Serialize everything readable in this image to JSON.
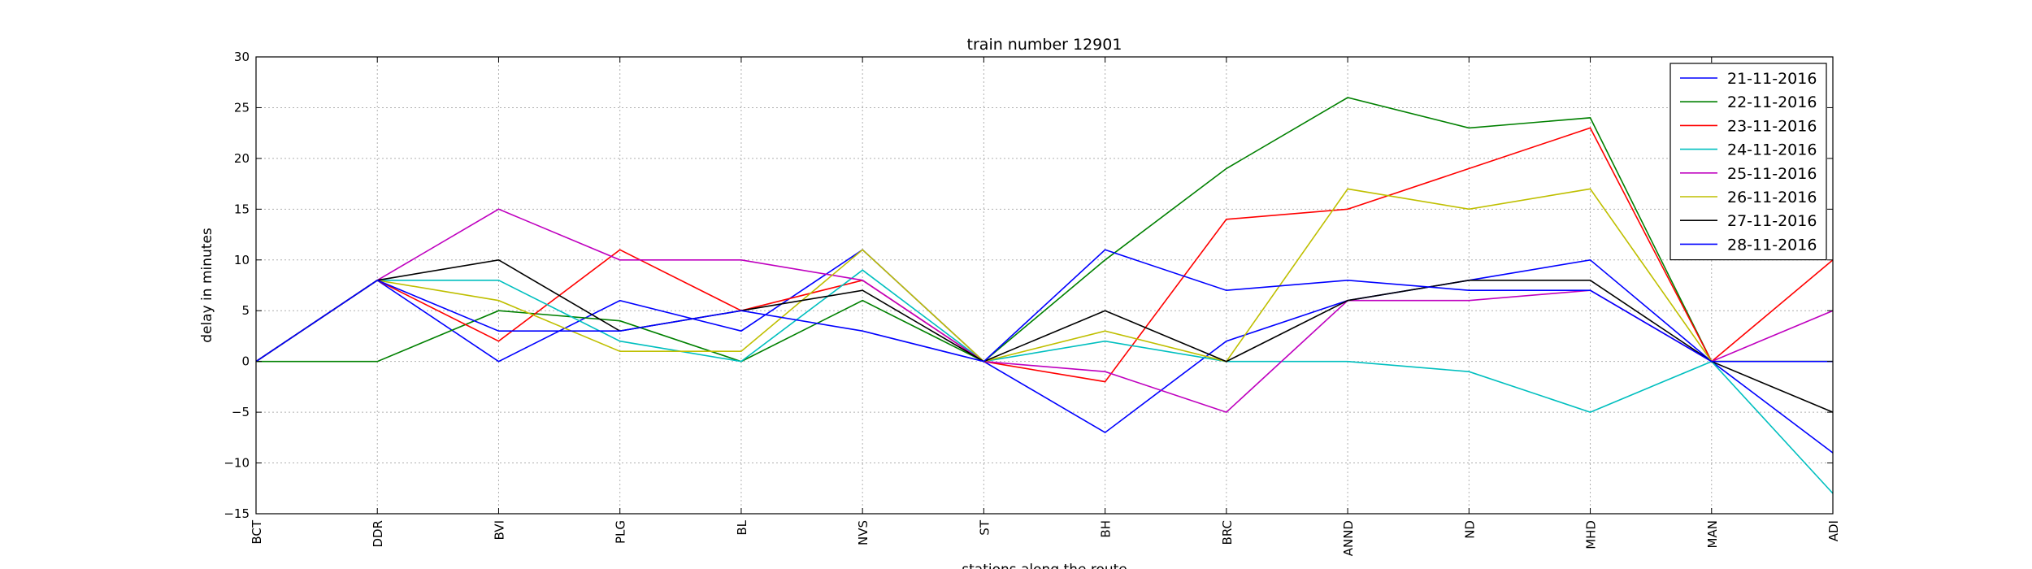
{
  "chart_data": {
    "type": "line",
    "title": "train number 12901",
    "xlabel": "stations along the route",
    "ylabel": "delay in minutes",
    "categories": [
      "BCT",
      "DDR",
      "BVI",
      "PLG",
      "BL",
      "NVS",
      "ST",
      "BH",
      "BRC",
      "ANND",
      "ND",
      "MHD",
      "MAN",
      "ADI"
    ],
    "ylim": [
      -15,
      30
    ],
    "yticks": [
      -15,
      -10,
      -5,
      0,
      5,
      10,
      15,
      20,
      25,
      30
    ],
    "grid": true,
    "legend_position": "top-right",
    "series": [
      {
        "name": "21-11-2016",
        "color": "#0000ff",
        "values": [
          0,
          8,
          0,
          6,
          3,
          11,
          0,
          -7,
          2,
          6,
          8,
          10,
          0,
          -9
        ]
      },
      {
        "name": "22-11-2016",
        "color": "#008000",
        "values": [
          0,
          0,
          5,
          4,
          0,
          6,
          0,
          10,
          19,
          26,
          23,
          24,
          0,
          0
        ]
      },
      {
        "name": "23-11-2016",
        "color": "#ff0000",
        "values": [
          0,
          8,
          2,
          11,
          5,
          8,
          0,
          -2,
          14,
          15,
          19,
          23,
          0,
          10
        ]
      },
      {
        "name": "24-11-2016",
        "color": "#00bfbf",
        "values": [
          0,
          8,
          8,
          2,
          0,
          9,
          0,
          2,
          0,
          0,
          -1,
          -5,
          0,
          -13
        ]
      },
      {
        "name": "25-11-2016",
        "color": "#bf00bf",
        "values": [
          0,
          8,
          15,
          10,
          10,
          8,
          0,
          -1,
          -5,
          6,
          6,
          7,
          0,
          5
        ]
      },
      {
        "name": "26-11-2016",
        "color": "#bfbf00",
        "values": [
          0,
          8,
          6,
          1,
          1,
          11,
          0,
          3,
          0,
          17,
          15,
          17,
          0,
          0
        ]
      },
      {
        "name": "27-11-2016",
        "color": "#000000",
        "values": [
          0,
          8,
          10,
          3,
          5,
          7,
          0,
          5,
          0,
          6,
          8,
          8,
          0,
          -5
        ]
      },
      {
        "name": "28-11-2016",
        "color": "#0000ff",
        "values": [
          0,
          8,
          3,
          3,
          5,
          3,
          0,
          11,
          7,
          8,
          7,
          7,
          0,
          0
        ]
      }
    ]
  }
}
